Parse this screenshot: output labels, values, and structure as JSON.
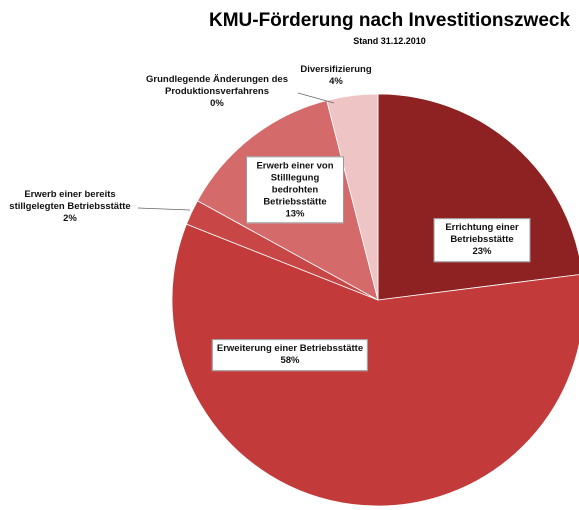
{
  "chart_data": {
    "type": "pie",
    "title": "KMU-Förderung nach Investitionszweck",
    "subtitle": "Stand 31.12.2010",
    "categories": [
      "Errichtung einer Betriebsstätte",
      "Erweiterung einer Betriebsstätte",
      "Erwerb einer bereits stillgelegten Betriebsstätte",
      "Erwerb einer von Stilllegung bedrohten Betriebsstätte",
      "Grundlegende Änderungen des Produktionsverfahrens",
      "Diversifizierung"
    ],
    "values": [
      23,
      58,
      2,
      13,
      0,
      4
    ],
    "value_labels": [
      "23%",
      "58%",
      "2%",
      "13%",
      "0%",
      "4%"
    ],
    "colors": [
      "#8e2222",
      "#c23a3a",
      "#c94646",
      "#d46a6a",
      "#d98080",
      "#efc4c4"
    ]
  }
}
